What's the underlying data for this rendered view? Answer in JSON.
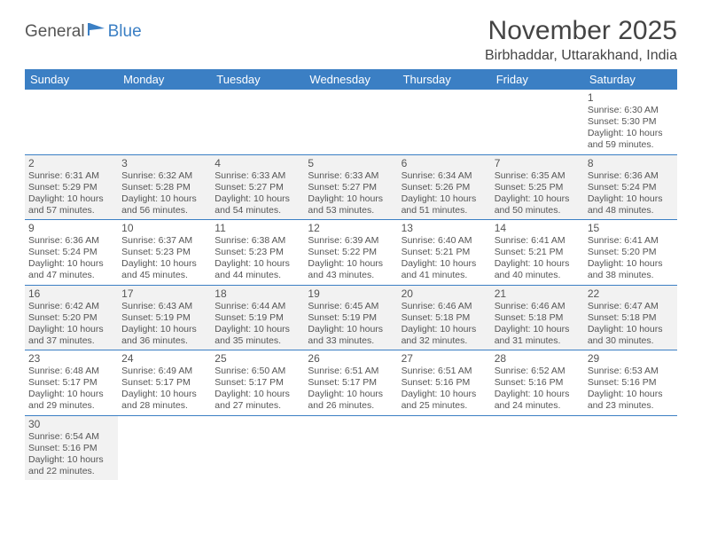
{
  "brand": {
    "name1": "General",
    "name2": "Blue"
  },
  "title": "November 2025",
  "location": "Birbhaddar, Uttarakhand, India",
  "colors": {
    "header_bg": "#3b7fc4",
    "header_text": "#ffffff",
    "shade": "#f2f2f2",
    "rule": "#3b7fc4",
    "text": "#555555"
  },
  "weekdays": [
    "Sunday",
    "Monday",
    "Tuesday",
    "Wednesday",
    "Thursday",
    "Friday",
    "Saturday"
  ],
  "weeks": [
    {
      "shaded": false,
      "days": [
        null,
        null,
        null,
        null,
        null,
        null,
        {
          "n": "1",
          "sr": "Sunrise: 6:30 AM",
          "ss": "Sunset: 5:30 PM",
          "dl1": "Daylight: 10 hours",
          "dl2": "and 59 minutes."
        }
      ]
    },
    {
      "shaded": true,
      "days": [
        {
          "n": "2",
          "sr": "Sunrise: 6:31 AM",
          "ss": "Sunset: 5:29 PM",
          "dl1": "Daylight: 10 hours",
          "dl2": "and 57 minutes."
        },
        {
          "n": "3",
          "sr": "Sunrise: 6:32 AM",
          "ss": "Sunset: 5:28 PM",
          "dl1": "Daylight: 10 hours",
          "dl2": "and 56 minutes."
        },
        {
          "n": "4",
          "sr": "Sunrise: 6:33 AM",
          "ss": "Sunset: 5:27 PM",
          "dl1": "Daylight: 10 hours",
          "dl2": "and 54 minutes."
        },
        {
          "n": "5",
          "sr": "Sunrise: 6:33 AM",
          "ss": "Sunset: 5:27 PM",
          "dl1": "Daylight: 10 hours",
          "dl2": "and 53 minutes."
        },
        {
          "n": "6",
          "sr": "Sunrise: 6:34 AM",
          "ss": "Sunset: 5:26 PM",
          "dl1": "Daylight: 10 hours",
          "dl2": "and 51 minutes."
        },
        {
          "n": "7",
          "sr": "Sunrise: 6:35 AM",
          "ss": "Sunset: 5:25 PM",
          "dl1": "Daylight: 10 hours",
          "dl2": "and 50 minutes."
        },
        {
          "n": "8",
          "sr": "Sunrise: 6:36 AM",
          "ss": "Sunset: 5:24 PM",
          "dl1": "Daylight: 10 hours",
          "dl2": "and 48 minutes."
        }
      ]
    },
    {
      "shaded": false,
      "days": [
        {
          "n": "9",
          "sr": "Sunrise: 6:36 AM",
          "ss": "Sunset: 5:24 PM",
          "dl1": "Daylight: 10 hours",
          "dl2": "and 47 minutes."
        },
        {
          "n": "10",
          "sr": "Sunrise: 6:37 AM",
          "ss": "Sunset: 5:23 PM",
          "dl1": "Daylight: 10 hours",
          "dl2": "and 45 minutes."
        },
        {
          "n": "11",
          "sr": "Sunrise: 6:38 AM",
          "ss": "Sunset: 5:23 PM",
          "dl1": "Daylight: 10 hours",
          "dl2": "and 44 minutes."
        },
        {
          "n": "12",
          "sr": "Sunrise: 6:39 AM",
          "ss": "Sunset: 5:22 PM",
          "dl1": "Daylight: 10 hours",
          "dl2": "and 43 minutes."
        },
        {
          "n": "13",
          "sr": "Sunrise: 6:40 AM",
          "ss": "Sunset: 5:21 PM",
          "dl1": "Daylight: 10 hours",
          "dl2": "and 41 minutes."
        },
        {
          "n": "14",
          "sr": "Sunrise: 6:41 AM",
          "ss": "Sunset: 5:21 PM",
          "dl1": "Daylight: 10 hours",
          "dl2": "and 40 minutes."
        },
        {
          "n": "15",
          "sr": "Sunrise: 6:41 AM",
          "ss": "Sunset: 5:20 PM",
          "dl1": "Daylight: 10 hours",
          "dl2": "and 38 minutes."
        }
      ]
    },
    {
      "shaded": true,
      "days": [
        {
          "n": "16",
          "sr": "Sunrise: 6:42 AM",
          "ss": "Sunset: 5:20 PM",
          "dl1": "Daylight: 10 hours",
          "dl2": "and 37 minutes."
        },
        {
          "n": "17",
          "sr": "Sunrise: 6:43 AM",
          "ss": "Sunset: 5:19 PM",
          "dl1": "Daylight: 10 hours",
          "dl2": "and 36 minutes."
        },
        {
          "n": "18",
          "sr": "Sunrise: 6:44 AM",
          "ss": "Sunset: 5:19 PM",
          "dl1": "Daylight: 10 hours",
          "dl2": "and 35 minutes."
        },
        {
          "n": "19",
          "sr": "Sunrise: 6:45 AM",
          "ss": "Sunset: 5:19 PM",
          "dl1": "Daylight: 10 hours",
          "dl2": "and 33 minutes."
        },
        {
          "n": "20",
          "sr": "Sunrise: 6:46 AM",
          "ss": "Sunset: 5:18 PM",
          "dl1": "Daylight: 10 hours",
          "dl2": "and 32 minutes."
        },
        {
          "n": "21",
          "sr": "Sunrise: 6:46 AM",
          "ss": "Sunset: 5:18 PM",
          "dl1": "Daylight: 10 hours",
          "dl2": "and 31 minutes."
        },
        {
          "n": "22",
          "sr": "Sunrise: 6:47 AM",
          "ss": "Sunset: 5:18 PM",
          "dl1": "Daylight: 10 hours",
          "dl2": "and 30 minutes."
        }
      ]
    },
    {
      "shaded": false,
      "days": [
        {
          "n": "23",
          "sr": "Sunrise: 6:48 AM",
          "ss": "Sunset: 5:17 PM",
          "dl1": "Daylight: 10 hours",
          "dl2": "and 29 minutes."
        },
        {
          "n": "24",
          "sr": "Sunrise: 6:49 AM",
          "ss": "Sunset: 5:17 PM",
          "dl1": "Daylight: 10 hours",
          "dl2": "and 28 minutes."
        },
        {
          "n": "25",
          "sr": "Sunrise: 6:50 AM",
          "ss": "Sunset: 5:17 PM",
          "dl1": "Daylight: 10 hours",
          "dl2": "and 27 minutes."
        },
        {
          "n": "26",
          "sr": "Sunrise: 6:51 AM",
          "ss": "Sunset: 5:17 PM",
          "dl1": "Daylight: 10 hours",
          "dl2": "and 26 minutes."
        },
        {
          "n": "27",
          "sr": "Sunrise: 6:51 AM",
          "ss": "Sunset: 5:16 PM",
          "dl1": "Daylight: 10 hours",
          "dl2": "and 25 minutes."
        },
        {
          "n": "28",
          "sr": "Sunrise: 6:52 AM",
          "ss": "Sunset: 5:16 PM",
          "dl1": "Daylight: 10 hours",
          "dl2": "and 24 minutes."
        },
        {
          "n": "29",
          "sr": "Sunrise: 6:53 AM",
          "ss": "Sunset: 5:16 PM",
          "dl1": "Daylight: 10 hours",
          "dl2": "and 23 minutes."
        }
      ]
    },
    {
      "shaded": true,
      "days": [
        {
          "n": "30",
          "sr": "Sunrise: 6:54 AM",
          "ss": "Sunset: 5:16 PM",
          "dl1": "Daylight: 10 hours",
          "dl2": "and 22 minutes."
        },
        null,
        null,
        null,
        null,
        null,
        null
      ]
    }
  ]
}
